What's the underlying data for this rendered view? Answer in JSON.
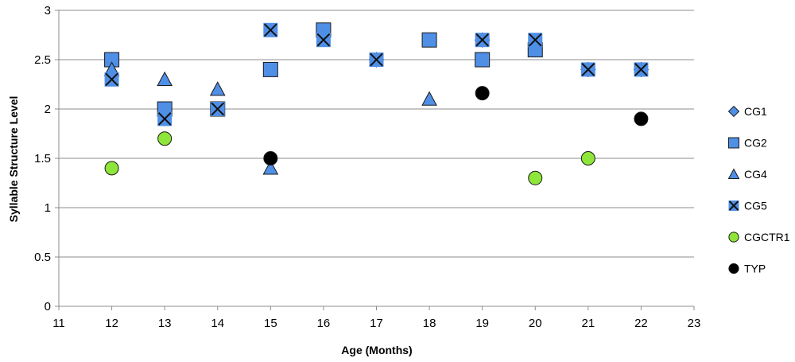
{
  "chart_data": {
    "type": "scatter",
    "title": "",
    "xlabel": "Age (Months)",
    "ylabel": "Syllable Structure Level",
    "xlim": [
      11,
      23
    ],
    "ylim": [
      0,
      3
    ],
    "xticks": [
      11,
      12,
      13,
      14,
      15,
      16,
      17,
      18,
      19,
      20,
      21,
      22,
      23
    ],
    "yticks": [
      0,
      0.5,
      1,
      1.5,
      2,
      2.5,
      3
    ],
    "ytick_labels": [
      "0",
      "0.5",
      "1",
      "1.5",
      "2",
      "2.5",
      "3"
    ],
    "grid": "horizontal",
    "legend": "right",
    "series": [
      {
        "name": "CG1",
        "marker": "diamond",
        "color": "#4f8fe6",
        "points": [
          [
            12,
            2.5
          ],
          [
            16,
            2.8
          ],
          [
            17,
            2.5
          ],
          [
            19,
            2.7
          ],
          [
            20,
            2.6
          ],
          [
            21,
            2.4
          ],
          [
            22,
            2.4
          ]
        ]
      },
      {
        "name": "CG2",
        "marker": "square",
        "color": "#4f8fe6",
        "points": [
          [
            12,
            2.5
          ],
          [
            13,
            2.0
          ],
          [
            14,
            2.0
          ],
          [
            15,
            2.4
          ],
          [
            16,
            2.8
          ],
          [
            18,
            2.7
          ],
          [
            19,
            2.5
          ],
          [
            20,
            2.6
          ]
        ]
      },
      {
        "name": "CG4",
        "marker": "triangle",
        "color": "#4f8fe6",
        "points": [
          [
            12,
            2.4
          ],
          [
            13,
            2.3
          ],
          [
            14,
            2.2
          ],
          [
            15,
            1.4
          ],
          [
            18,
            2.1
          ]
        ]
      },
      {
        "name": "CG5",
        "marker": "square-x",
        "color": "#4f8fe6",
        "points": [
          [
            12,
            2.3
          ],
          [
            13,
            1.9
          ],
          [
            14,
            2.0
          ],
          [
            15,
            2.8
          ],
          [
            16,
            2.7
          ],
          [
            17,
            2.5
          ],
          [
            19,
            2.7
          ],
          [
            20,
            2.7
          ],
          [
            21,
            2.4
          ],
          [
            22,
            2.4
          ]
        ]
      },
      {
        "name": "CGCTR1",
        "marker": "circle",
        "color": "#8ee63a",
        "points": [
          [
            12,
            1.4
          ],
          [
            13,
            1.7
          ],
          [
            20,
            1.3
          ],
          [
            21,
            1.5
          ]
        ]
      },
      {
        "name": "TYP",
        "marker": "circle",
        "color": "#000000",
        "points": [
          [
            15,
            1.5
          ],
          [
            19,
            2.16
          ],
          [
            22,
            1.9
          ]
        ]
      }
    ]
  }
}
